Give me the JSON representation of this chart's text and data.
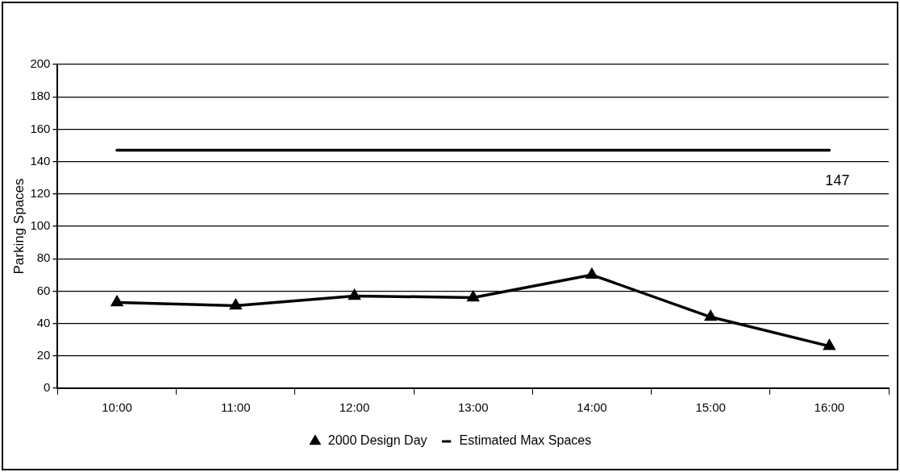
{
  "chart_data": {
    "type": "line",
    "ylabel": "Parking Spaces",
    "categories": [
      "10:00",
      "11:00",
      "12:00",
      "13:00",
      "14:00",
      "15:00",
      "16:00"
    ],
    "series": [
      {
        "name": "2000 Design Day",
        "color": "#000000",
        "marker": "triangle",
        "values": [
          53,
          51,
          57,
          56,
          70,
          44,
          26
        ]
      },
      {
        "name": "Estimated Max Spaces",
        "color": "#000000",
        "marker": "none",
        "values": [
          147,
          147,
          147,
          147,
          147,
          147,
          147
        ],
        "value_labels": [
          null,
          null,
          null,
          null,
          null,
          null,
          "147"
        ]
      }
    ],
    "ylim": [
      0,
      200
    ],
    "yticks": [
      0,
      20,
      40,
      60,
      80,
      100,
      120,
      140,
      160,
      180,
      200
    ],
    "grid": "y",
    "legend": "bottom"
  }
}
